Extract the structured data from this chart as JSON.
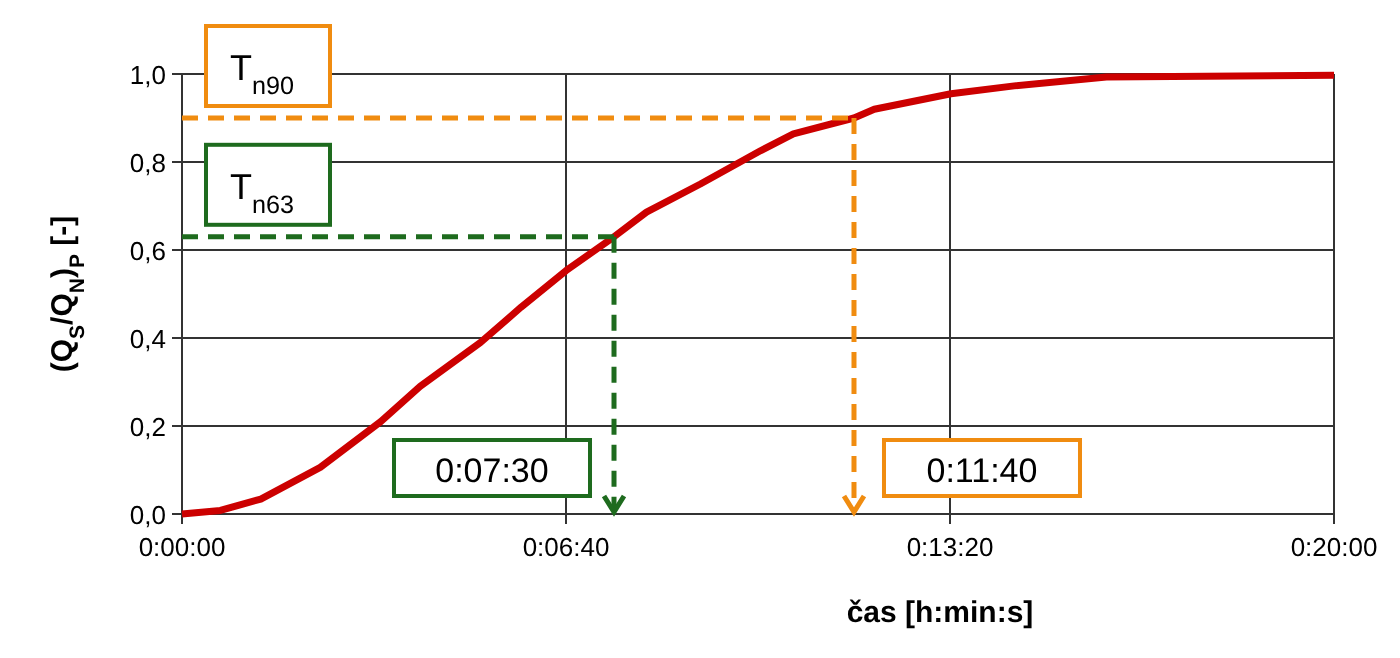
{
  "chart_data": {
    "type": "line",
    "xlabel": "čas [h:min:s]",
    "ylabel": "(Q$_{S}$/Q$_{N}$)$_{P}$  [-]",
    "xlim": [
      0,
      0.33333
    ],
    "ylim": [
      0,
      1
    ],
    "xticks": [
      {
        "value": 0,
        "label": "0:00:00"
      },
      {
        "value": 0.11111,
        "label": "0:06:40"
      },
      {
        "value": 0.22222,
        "label": "0:13:20"
      },
      {
        "value": 0.33333,
        "label": "0:20:00"
      }
    ],
    "yticks": [
      {
        "value": 0,
        "label": "0,0"
      },
      {
        "value": 0.2,
        "label": "0,2"
      },
      {
        "value": 0.4,
        "label": "0,4"
      },
      {
        "value": 0.6,
        "label": "0,6"
      },
      {
        "value": 0.8,
        "label": "0,8"
      },
      {
        "value": 1,
        "label": "1,0"
      }
    ],
    "grid": true,
    "marker": "none",
    "series": [
      {
        "color": "#cc0000",
        "line_style": "solid",
        "x": [
          0,
          0.0111,
          0.0228,
          0.04,
          0.0575,
          0.0689,
          0.0864,
          0.0981,
          0.1111,
          0.125,
          0.1344,
          0.15,
          0.1675,
          0.1769,
          0.19444,
          0.2003,
          0.2225,
          0.2408,
          0.2675,
          0.33333
        ],
        "values": [
          0,
          0.008,
          0.034,
          0.106,
          0.21,
          0.29,
          0.39,
          0.47,
          0.553,
          0.63,
          0.686,
          0.75,
          0.826,
          0.864,
          0.9,
          0.92,
          0.955,
          0.973,
          0.993,
          0.997
        ]
      }
    ],
    "ref_lines": [
      {
        "axis": "y",
        "value": 0.9,
        "label": "T$_{n90}$",
        "color": "#f08c10",
        "line_style": "dashed"
      },
      {
        "axis": "y",
        "value": 0.63,
        "label": "T$_{n63}$",
        "color": "#1e6b1e",
        "line_style": "dashed"
      },
      {
        "axis": "x",
        "value": 0.125,
        "label": "0:07:30",
        "color": "#1e6b1e",
        "line_style": "dashed"
      },
      {
        "axis": "x",
        "value": 0.19444,
        "label": "0:11:40",
        "color": "#f08c10",
        "line_style": "dashed"
      }
    ]
  }
}
